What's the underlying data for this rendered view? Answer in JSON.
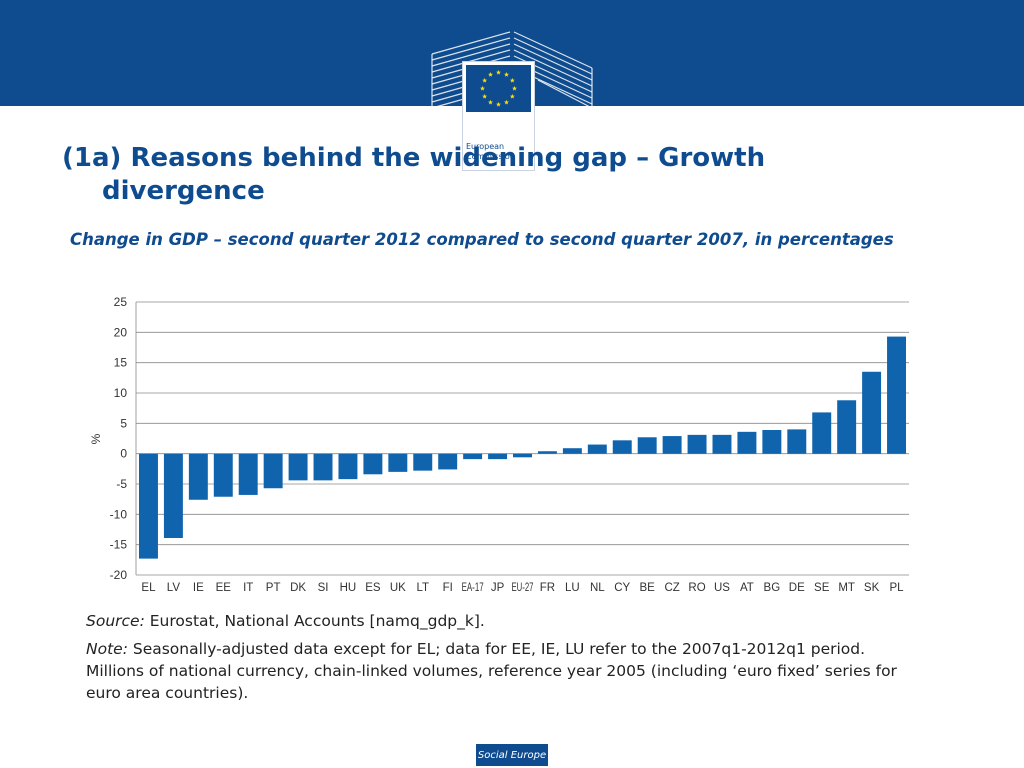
{
  "brand": {
    "logo_line1": "European",
    "logo_line2": "Commission",
    "color_primary": "#0f4c8f",
    "color_bar": "#1064ae",
    "footer_label": "Social Europe"
  },
  "slide": {
    "title_line1": "(1a) Reasons behind the widening gap – Growth",
    "title_line2": "divergence",
    "subtitle": "Change in GDP – second quarter 2012 compared to second quarter 2007, in percentages"
  },
  "chart_data": {
    "type": "bar",
    "ylabel": "%",
    "ylim": [
      -20,
      25
    ],
    "yticks": [
      25,
      20,
      15,
      10,
      5,
      0,
      -5,
      -10,
      -15,
      -20
    ],
    "grid": true,
    "categories": [
      "EL",
      "LV",
      "IE",
      "EE",
      "IT",
      "PT",
      "DK",
      "SI",
      "HU",
      "ES",
      "UK",
      "LT",
      "FI",
      "EA-17",
      "JP",
      "EU-27",
      "FR",
      "LU",
      "NL",
      "CY",
      "BE",
      "CZ",
      "RO",
      "US",
      "AT",
      "BG",
      "DE",
      "SE",
      "MT",
      "SK",
      "PL"
    ],
    "values": [
      -17.3,
      -13.9,
      -7.6,
      -7.1,
      -6.8,
      -5.7,
      -4.4,
      -4.4,
      -4.2,
      -3.4,
      -3.0,
      -2.8,
      -2.6,
      -0.9,
      -0.9,
      -0.6,
      0.4,
      0.9,
      1.5,
      2.2,
      2.7,
      2.9,
      3.1,
      3.1,
      3.6,
      3.9,
      4.0,
      6.8,
      8.8,
      13.5,
      19.3
    ]
  },
  "notes": {
    "source_label": "Source:",
    "source_text": " Eurostat, National Accounts [namq_gdp_k].",
    "note_label": "Note:",
    "note_text": " Seasonally-adjusted data except for EL; data for EE, IE, LU refer to the 2007q1-2012q1 period. Millions of national currency, chain-linked volumes, reference year 2005 (including ‘euro fixed’ series for euro area countries)."
  }
}
